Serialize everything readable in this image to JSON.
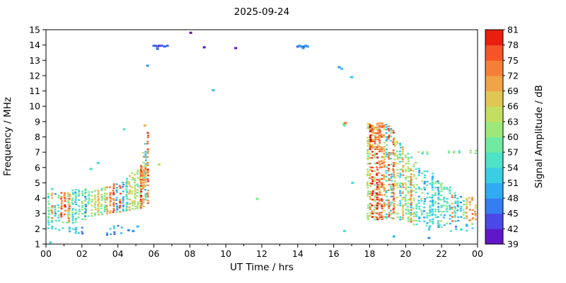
{
  "figure": {
    "title": "2025-09-24",
    "xlabel": "UT Time / hrs",
    "ylabel": "Frequency / MHz",
    "colorbar_label": "Signal Amplitude / dB",
    "background": "#ffffff"
  },
  "chart_data": {
    "type": "heatmap",
    "title": "2025-09-24",
    "xlabel": "UT Time / hrs",
    "ylabel": "Frequency / MHz",
    "xlim": [
      0,
      24
    ],
    "ylim": [
      1,
      15
    ],
    "grid": false,
    "x_ticks": {
      "values": [
        0,
        2,
        4,
        6,
        8,
        10,
        12,
        14,
        16,
        18,
        20,
        22,
        24
      ],
      "labels": [
        "00",
        "02",
        "04",
        "06",
        "08",
        "10",
        "12",
        "14",
        "16",
        "18",
        "20",
        "22",
        "00"
      ],
      "minor": [
        1,
        3,
        5,
        7,
        9,
        11,
        13,
        15,
        17,
        19,
        21,
        23
      ]
    },
    "y_ticks": {
      "values": [
        1,
        2,
        3,
        4,
        5,
        6,
        7,
        8,
        9,
        10,
        11,
        12,
        13,
        14,
        15
      ],
      "labels": [
        "1",
        "2",
        "3",
        "4",
        "5",
        "6",
        "7",
        "8",
        "9",
        "10",
        "11",
        "12",
        "13",
        "14",
        "15"
      ]
    },
    "colorbar": {
      "label": "Signal Amplitude / dB",
      "min": 39,
      "max": 81,
      "ticks": [
        39,
        42,
        45,
        48,
        51,
        54,
        57,
        60,
        63,
        66,
        69,
        72,
        75,
        78,
        81
      ]
    },
    "colormap": [
      {
        "db": 39,
        "color": "#6a00b4"
      },
      {
        "db": 42,
        "color": "#5a2be0"
      },
      {
        "db": 45,
        "color": "#3c64f0"
      },
      {
        "db": 48,
        "color": "#2e96f5"
      },
      {
        "db": 51,
        "color": "#30c0f0"
      },
      {
        "db": 54,
        "color": "#40dcd8"
      },
      {
        "db": 57,
        "color": "#5ce8b4"
      },
      {
        "db": 60,
        "color": "#84ec8c"
      },
      {
        "db": 63,
        "color": "#b4e46a"
      },
      {
        "db": 66,
        "color": "#d4d858"
      },
      {
        "db": 69,
        "color": "#ecb44e"
      },
      {
        "db": 72,
        "color": "#f49240"
      },
      {
        "db": 75,
        "color": "#f86c30"
      },
      {
        "db": 78,
        "color": "#f43c1c"
      },
      {
        "db": 81,
        "color": "#e00000"
      }
    ],
    "sparse_points": [
      [
        0.25,
        1.1,
        54
      ],
      [
        0.35,
        4.6,
        57
      ],
      [
        2.5,
        5.9,
        54
      ],
      [
        2.9,
        6.3,
        54
      ],
      [
        4.35,
        8.5,
        57
      ],
      [
        4.6,
        1.9,
        48
      ],
      [
        4.85,
        1.85,
        48
      ],
      [
        5.1,
        2.15,
        51
      ],
      [
        5.5,
        8.75,
        69
      ],
      [
        5.65,
        12.65,
        48
      ],
      [
        6.0,
        13.95,
        45
      ],
      [
        6.1,
        13.95,
        45
      ],
      [
        6.2,
        13.9,
        45
      ],
      [
        6.2,
        13.75,
        45
      ],
      [
        6.3,
        13.95,
        42
      ],
      [
        6.3,
        6.2,
        63
      ],
      [
        6.45,
        13.95,
        45
      ],
      [
        6.6,
        13.9,
        45
      ],
      [
        6.75,
        13.95,
        45
      ],
      [
        8.05,
        14.8,
        39
      ],
      [
        8.8,
        13.85,
        40
      ],
      [
        9.3,
        11.05,
        51
      ],
      [
        10.55,
        13.8,
        40
      ],
      [
        11.75,
        3.95,
        60
      ],
      [
        14.0,
        13.9,
        45
      ],
      [
        14.1,
        13.95,
        48
      ],
      [
        14.2,
        13.9,
        48
      ],
      [
        14.3,
        13.8,
        48
      ],
      [
        14.35,
        13.9,
        45
      ],
      [
        14.45,
        13.95,
        48
      ],
      [
        14.55,
        13.9,
        48
      ],
      [
        16.3,
        12.55,
        48
      ],
      [
        16.45,
        12.45,
        51
      ],
      [
        16.55,
        8.85,
        60
      ],
      [
        16.6,
        8.75,
        57
      ],
      [
        16.65,
        8.9,
        75
      ],
      [
        16.6,
        1.85,
        54
      ],
      [
        17.0,
        11.9,
        51
      ],
      [
        17.05,
        5.0,
        54
      ],
      [
        19.35,
        1.5,
        51
      ],
      [
        21.3,
        1.4,
        48
      ],
      [
        23.1,
        1.95,
        54
      ],
      [
        23.4,
        2.2,
        51
      ]
    ],
    "clusters": [
      {
        "t0": 0.15,
        "t1": 1.3,
        "dt": 0.18,
        "fb0": 2.7,
        "fb1": 2.8,
        "ft0": 4.3,
        "ft1": 4.4,
        "density": 0.75,
        "amps": [
          51,
          54,
          54,
          57,
          57,
          60,
          63,
          69,
          72,
          75
        ]
      },
      {
        "t0": 1.3,
        "t1": 2.2,
        "dt": 0.18,
        "fb0": 2.4,
        "fb1": 2.5,
        "ft0": 4.5,
        "ft1": 4.6,
        "density": 0.7,
        "amps": [
          51,
          54,
          57,
          60,
          63,
          69,
          72
        ]
      },
      {
        "t0": 2.2,
        "t1": 3.4,
        "dt": 0.18,
        "fb0": 2.8,
        "fb1": 3.0,
        "ft0": 4.6,
        "ft1": 4.8,
        "density": 0.75,
        "amps": [
          51,
          54,
          57,
          60,
          63,
          66,
          69,
          72,
          75,
          78
        ]
      },
      {
        "t0": 3.4,
        "t1": 4.5,
        "dt": 0.18,
        "fb0": 3.0,
        "fb1": 3.2,
        "ft0": 4.8,
        "ft1": 5.2,
        "density": 0.7,
        "amps": [
          51,
          54,
          57,
          60,
          63,
          69,
          72,
          75
        ]
      },
      {
        "t0": 4.5,
        "t1": 5.3,
        "dt": 0.15,
        "fb0": 3.2,
        "fb1": 3.4,
        "ft0": 5.4,
        "ft1": 6.0,
        "density": 0.7,
        "amps": [
          54,
          57,
          60,
          63,
          66,
          69,
          72,
          75,
          78
        ]
      },
      {
        "t0": 5.3,
        "t1": 5.75,
        "dt": 0.12,
        "fb0": 3.4,
        "fb1": 3.6,
        "ft0": 6.3,
        "ft1": 8.8,
        "density": 0.55,
        "amps": [
          54,
          57,
          60,
          63,
          69,
          72,
          75,
          78
        ]
      },
      {
        "t0": 5.3,
        "t1": 5.65,
        "dt": 0.12,
        "fb0": 4.8,
        "fb1": 4.8,
        "ft0": 6.2,
        "ft1": 6.2,
        "density": 0.6,
        "amps": [
          69,
          75,
          78
        ]
      },
      {
        "t0": 1.3,
        "t1": 2.1,
        "dt": 0.18,
        "fb0": 1.7,
        "fb1": 1.7,
        "ft0": 2.2,
        "ft1": 2.2,
        "density": 0.5,
        "amps": [
          48,
          51,
          54
        ]
      },
      {
        "t0": 3.4,
        "t1": 4.3,
        "dt": 0.2,
        "fb0": 1.6,
        "fb1": 1.7,
        "ft0": 2.2,
        "ft1": 2.3,
        "density": 0.4,
        "amps": [
          45,
          48,
          51
        ]
      },
      {
        "t0": 0.15,
        "t1": 1.2,
        "dt": 0.2,
        "fb0": 1.9,
        "fb1": 1.9,
        "ft0": 2.6,
        "ft1": 2.6,
        "density": 0.35,
        "amps": [
          51,
          54,
          57
        ]
      },
      {
        "t0": 17.9,
        "t1": 19.4,
        "dt": 0.13,
        "fb0": 2.6,
        "fb1": 2.7,
        "ft0": 8.9,
        "ft1": 8.9,
        "density": 0.6,
        "amps": [
          51,
          54,
          54,
          57,
          57,
          60,
          60,
          63,
          66,
          69,
          72,
          75,
          78
        ]
      },
      {
        "t0": 18.05,
        "t1": 18.6,
        "dt": 0.13,
        "fb0": 7.2,
        "fb1": 7.2,
        "ft0": 8.8,
        "ft1": 8.8,
        "density": 0.6,
        "amps": [
          69,
          72,
          75,
          78,
          78
        ]
      },
      {
        "t0": 19.4,
        "t1": 20.3,
        "dt": 0.15,
        "fb0": 2.5,
        "fb1": 2.5,
        "ft0": 8.0,
        "ft1": 6.8,
        "density": 0.55,
        "amps": [
          51,
          54,
          57,
          60,
          63,
          66,
          69,
          72
        ]
      },
      {
        "t0": 20.3,
        "t1": 21.5,
        "dt": 0.15,
        "fb0": 2.3,
        "fb1": 2.2,
        "ft0": 6.6,
        "ft1": 5.6,
        "density": 0.5,
        "amps": [
          51,
          54,
          57,
          60,
          63,
          69,
          72
        ]
      },
      {
        "t0": 21.5,
        "t1": 22.6,
        "dt": 0.16,
        "fb0": 2.1,
        "fb1": 2.1,
        "ft0": 5.4,
        "ft1": 4.6,
        "density": 0.5,
        "amps": [
          51,
          54,
          54,
          57,
          60,
          63,
          69
        ]
      },
      {
        "t0": 22.6,
        "t1": 23.9,
        "dt": 0.16,
        "fb0": 2.5,
        "fb1": 2.6,
        "ft0": 4.4,
        "ft1": 4.1,
        "density": 0.5,
        "amps": [
          51,
          54,
          57,
          60,
          69,
          72
        ]
      },
      {
        "t0": 21.0,
        "t1": 23.8,
        "dt": 0.3,
        "fb0": 1.8,
        "fb1": 1.9,
        "ft0": 2.3,
        "ft1": 2.4,
        "density": 0.3,
        "amps": [
          48,
          51,
          54
        ]
      },
      {
        "t0": 22.4,
        "t1": 23.9,
        "dt": 0.3,
        "fb0": 6.95,
        "fb1": 6.95,
        "ft0": 7.1,
        "ft1": 7.1,
        "density": 0.8,
        "amps": [
          57,
          60,
          60
        ]
      },
      {
        "t0": 20.7,
        "t1": 21.2,
        "dt": 0.25,
        "fb0": 6.9,
        "fb1": 6.9,
        "ft0": 7.1,
        "ft1": 7.1,
        "density": 0.7,
        "amps": [
          57,
          60
        ]
      }
    ]
  }
}
